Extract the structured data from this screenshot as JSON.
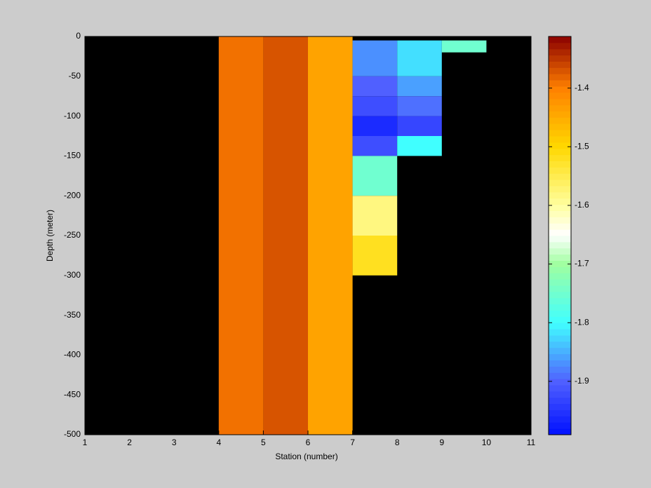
{
  "chart_data": {
    "type": "heatmap",
    "xlabel": "Station (number)",
    "ylabel": "Depth (meter)",
    "xlim": [
      1,
      11
    ],
    "xticks": [
      1,
      2,
      3,
      4,
      5,
      6,
      7,
      8,
      9,
      10,
      11
    ],
    "ylim": [
      -500,
      0
    ],
    "yticks": [
      0,
      -50,
      -100,
      -150,
      -200,
      -250,
      -300,
      -350,
      -400,
      -450,
      -500
    ],
    "background": "#000000",
    "cells": [
      {
        "x": [
          4,
          5
        ],
        "y": [
          -500,
          0
        ],
        "value": -1.39
      },
      {
        "x": [
          5,
          6
        ],
        "y": [
          -500,
          0
        ],
        "value": -1.37
      },
      {
        "x": [
          6,
          7
        ],
        "y": [
          -500,
          0
        ],
        "value": -1.44
      },
      {
        "x": [
          7,
          8
        ],
        "y": [
          -50,
          -5
        ],
        "value": -1.87
      },
      {
        "x": [
          7,
          8
        ],
        "y": [
          -75,
          -50
        ],
        "value": -1.9
      },
      {
        "x": [
          7,
          8
        ],
        "y": [
          -100,
          -75
        ],
        "value": -1.92
      },
      {
        "x": [
          7,
          8
        ],
        "y": [
          -125,
          -100
        ],
        "value": -1.96
      },
      {
        "x": [
          7,
          8
        ],
        "y": [
          -150,
          -125
        ],
        "value": -1.92
      },
      {
        "x": [
          7,
          8
        ],
        "y": [
          -200,
          -150
        ],
        "value": -1.75
      },
      {
        "x": [
          7,
          8
        ],
        "y": [
          -250,
          -200
        ],
        "value": -1.58
      },
      {
        "x": [
          7,
          8
        ],
        "y": [
          -300,
          -250
        ],
        "value": -1.52
      },
      {
        "x": [
          8,
          9
        ],
        "y": [
          -50,
          -5
        ],
        "value": -1.82
      },
      {
        "x": [
          8,
          9
        ],
        "y": [
          -75,
          -50
        ],
        "value": -1.86
      },
      {
        "x": [
          8,
          9
        ],
        "y": [
          -100,
          -75
        ],
        "value": -1.89
      },
      {
        "x": [
          8,
          9
        ],
        "y": [
          -125,
          -100
        ],
        "value": -1.93
      },
      {
        "x": [
          8,
          9
        ],
        "y": [
          -150,
          -125
        ],
        "value": -1.8
      },
      {
        "x": [
          9,
          10
        ],
        "y": [
          -20,
          -5
        ],
        "value": -1.75
      }
    ],
    "clim": [
      -1.991,
      -1.312
    ],
    "cticks": [
      -1.4,
      -1.5,
      -1.6,
      -1.7,
      -1.8,
      -1.9
    ],
    "colormap": [
      [
        -1.991,
        "#0010ff"
      ],
      [
        -1.9,
        "#5060ff"
      ],
      [
        -1.8,
        "#40ffff"
      ],
      [
        -1.7,
        "#a0ffa0"
      ],
      [
        -1.65,
        "#ffffff"
      ],
      [
        -1.6,
        "#ffffa0"
      ],
      [
        -1.5,
        "#ffd800"
      ],
      [
        -1.4,
        "#ff8000"
      ],
      [
        -1.312,
        "#8b0000"
      ]
    ]
  }
}
